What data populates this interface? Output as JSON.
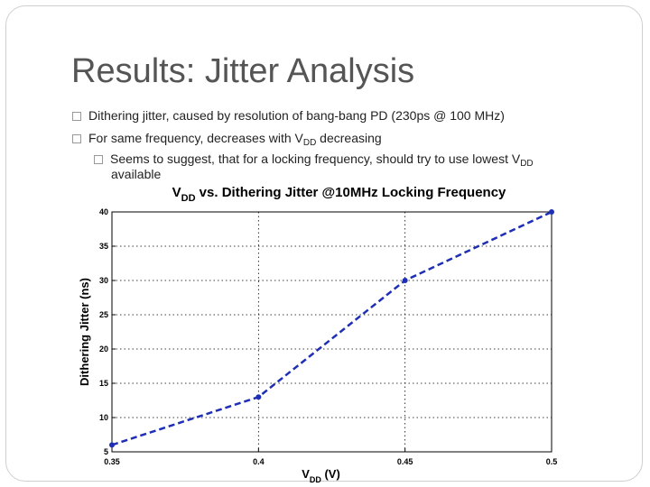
{
  "slide": {
    "title": "Results: Jitter Analysis",
    "bullets": [
      {
        "text": "Dithering jitter, caused by resolution of bang-bang PD (230ps @ 100 MHz)"
      },
      {
        "pre": "For same frequency, decreases with V",
        "sub": "DD",
        "post": " decreasing"
      },
      {
        "pre": "Seems to suggest, that for a locking frequency, should try to use lowest V",
        "sub": "DD",
        "line2": "available"
      }
    ]
  },
  "chart_data": {
    "type": "line",
    "title_main": "V",
    "title_sub": "DD",
    "title_rest": " vs. Dithering Jitter @10MHz Locking Frequency",
    "xlabel_main": "V",
    "xlabel_sub": "DD",
    "xlabel_rest": " (V)",
    "ylabel": "Dithering Jitter (ns)",
    "xlim": [
      0.35,
      0.5
    ],
    "ylim": [
      5,
      40
    ],
    "xticks": [
      "0.35",
      "0.4",
      "0.45",
      "0.5"
    ],
    "yticks": [
      "5",
      "10",
      "15",
      "20",
      "25",
      "30",
      "35",
      "40"
    ],
    "grid": true,
    "series": [
      {
        "x": [
          0.35,
          0.4,
          0.45,
          0.5
        ],
        "y": [
          6,
          13,
          30,
          40
        ],
        "color": "#1f2fb5"
      }
    ]
  }
}
